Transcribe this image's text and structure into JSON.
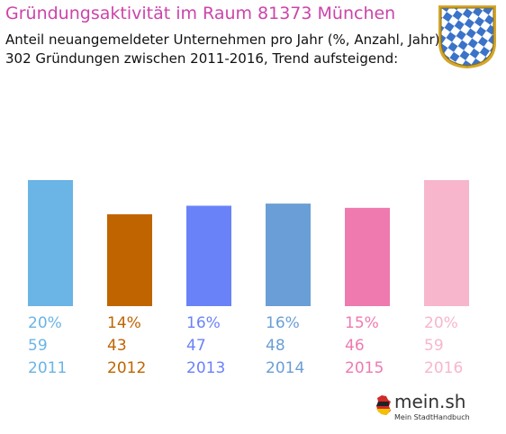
{
  "title": "Gründungsaktivität im Raum 81373 München",
  "subtitle_line1": "Anteil neuangemeldeter Unternehmen pro Jahr (%, Anzahl, Jahr)",
  "subtitle_line2": "302 Gründungen zwischen 2011-2016, Trend aufsteigend:",
  "logo": {
    "name": "mein.sh",
    "tagline": "Mein StadtHandbuch"
  },
  "colors": {
    "title": "#cc44aa",
    "crest_blue": "#3a73c9",
    "crest_frame": "#d4a62a"
  },
  "chart_data": {
    "type": "bar",
    "categories": [
      "2011",
      "2012",
      "2013",
      "2014",
      "2015",
      "2016"
    ],
    "percent_labels": [
      "20%",
      "14%",
      "16%",
      "16%",
      "15%",
      "20%"
    ],
    "values": [
      59,
      43,
      47,
      48,
      46,
      59
    ],
    "colors": [
      "#6ab4e6",
      "#c06400",
      "#6a82f8",
      "#6a9ed6",
      "#ee7ab0",
      "#f7b6cc"
    ],
    "ylim": [
      0,
      59
    ],
    "grid": false,
    "legend": "none"
  }
}
